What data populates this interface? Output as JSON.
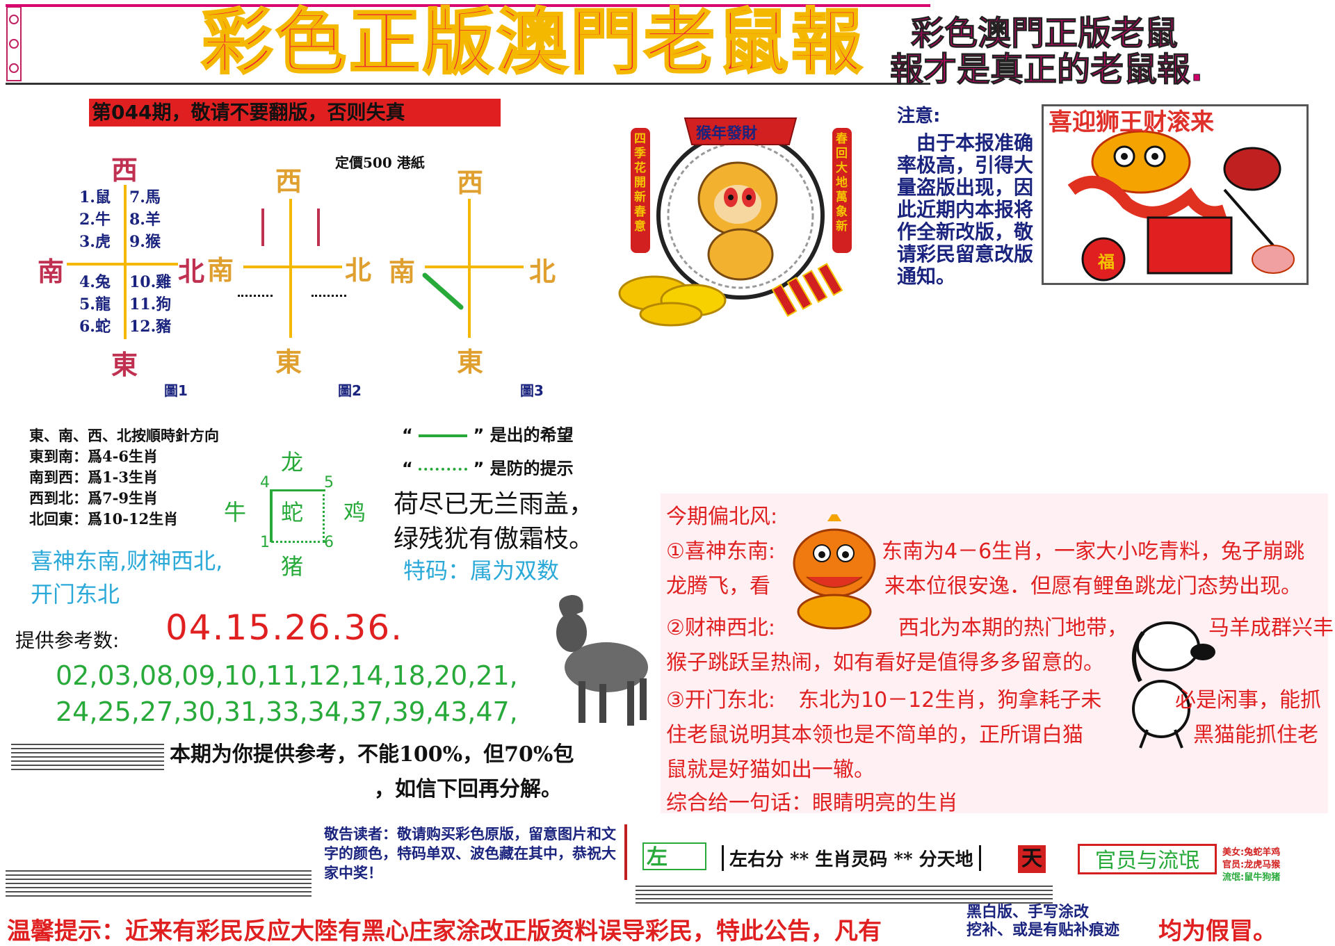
{
  "header": {
    "main_title": "彩色正版澳門老鼠報",
    "side_title_line1": "彩色澳門正版老鼠",
    "side_title_line2": "報才是真正的老鼠報."
  },
  "issue_banner": "第044期，敬请不要翻版，否则失真",
  "compass": {
    "fig1": {
      "west": "西",
      "east": "東",
      "south": "南",
      "north": "北",
      "zodiac_left": [
        "1.鼠",
        "2.牛",
        "3.虎",
        "4.兔",
        "5.龍",
        "6.蛇"
      ],
      "zodiac_right": [
        "7.馬",
        "8.羊",
        "9.猴",
        "10.雞",
        "11.狗",
        "12.豬"
      ],
      "caption": "圖1"
    },
    "fig2": {
      "west": "西",
      "east": "東",
      "south": "南",
      "north": "北",
      "top_note": "定價500 港紙",
      "caption": "圖2"
    },
    "fig3": {
      "west": "西",
      "east": "東",
      "south": "南",
      "north": "北",
      "caption": "圖3"
    }
  },
  "monkey_banner": {
    "top": "猴年發財",
    "left_vertical": "四季花開新春意",
    "right_vertical": "春回大地萬象新"
  },
  "notice": {
    "head": "注意:",
    "body": "由于本报准确率极高，引得大量盗版出现，因此近期内本报将作全新改版，敬请彩民留意改版通知。"
  },
  "lion_box": {
    "title": "喜迎狮王财滚来",
    "envelope_char": "福"
  },
  "rules": {
    "lines": [
      "東、南、西、北按順時針方向",
      "東到南：爲4-6生肖",
      "南到西：爲1-3生肖",
      "西到北：爲7-9生肖",
      "北回東：爲10-12生肖"
    ],
    "legend_solid": "是出的希望",
    "legend_dotted": "是防的提示",
    "quote_open": "“",
    "quote_close": "”"
  },
  "mini_diagram": {
    "top": "龙",
    "center": "蛇",
    "left": "牛",
    "right": "鸡",
    "bottom": "猪",
    "n4": "4",
    "n5": "5",
    "n1": "1",
    "n6": "6"
  },
  "poem": {
    "line1": "荷尽已无兰雨盖，",
    "line2": "绿残犹有傲霜枝。",
    "special": "特码：属为双数"
  },
  "gods": {
    "line1": "喜神东南,财神西北,",
    "line2": "开门东北"
  },
  "reference": {
    "label": "提供参考数:",
    "highlight": "04.15.26.36.",
    "row1": "02,03,08,09,10,11,12,14,18,20,21,",
    "row2": "24,25,27,30,31,33,34,37,39,43,47,"
  },
  "disclaimer": {
    "line1": "本期为你提供参考，不能100%，但70%包",
    "line2": "，如信下回再分解。"
  },
  "wind": {
    "title": "今期偏北风:",
    "p1_label": "①喜神东南:",
    "p1_text_a": "东南为4－6生肖，一家大小吃青料，兔子崩跳",
    "p1_text_b": "龙腾飞，看",
    "p1_text_c": "来本位很安逸．但愿有鲤鱼跳龙门态势出现。",
    "p2_label": "②财神西北:",
    "p2_text_a": "西北为本期的热门地带，",
    "p2_text_b": "马羊成群兴丰收",
    "p2_text_c": "猴子跳跃呈热闹，如有看好是值得多多留意的。",
    "p3_label": "③开门东北:",
    "p3_text_a": "东北为10－12生肖，狗拿耗子未",
    "p3_text_b": "必是闲事，能抓",
    "p3_text_c": "住老鼠说明其本领也是不简单的，正所谓白猫",
    "p3_text_d": "黑猫能抓住老",
    "p3_text_e": "鼠就是好猫如出一辙。",
    "summary": "综合给一句话：眼睛明亮的生肖"
  },
  "bottom": {
    "advice": "敬告读者：敬请购买彩色原版，留意图片和文字的颜色，特码单双、波色藏在其中，恭祝大家中奖！",
    "left_tag": "左",
    "middle": "左右分 ** 生肖灵码 ** 分天地",
    "sky_tag": "天",
    "official": "官员与流氓",
    "mini1": "美女:兔蛇羊鸡",
    "mini2": "官员:龙虎马猴",
    "mini3": "流氓:鼠牛狗猪"
  },
  "footer": {
    "text": "温馨提示：近来有彩民反应大陸有黑心庄家涂改正版资料误导彩民，特此公告，凡有",
    "box_line1": "黑白版、手写涂改",
    "box_line2": "挖补、或是有贴补痕迹",
    "tail": "均为假冒。"
  },
  "colors": {
    "red": "#e02020",
    "magenta": "#d0006a",
    "navy": "#1a237e",
    "gold": "#f5b800",
    "green": "#27aa3a",
    "cyan": "#2aa9d8"
  }
}
